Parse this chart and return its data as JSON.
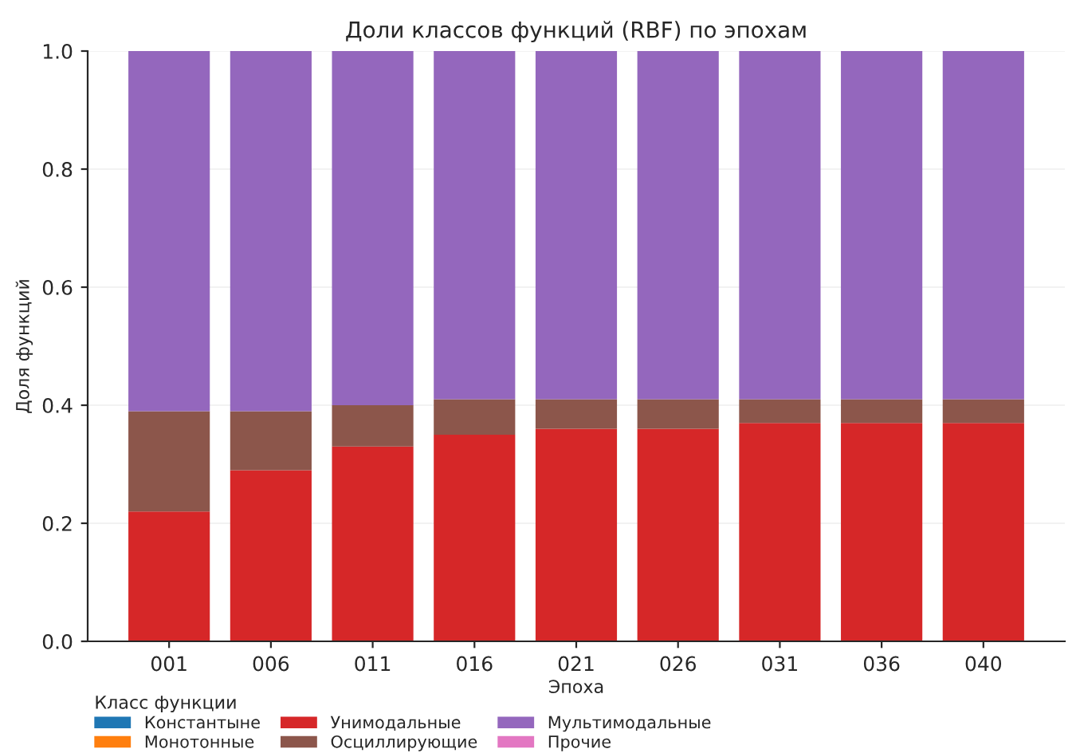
{
  "chart_data": {
    "type": "bar",
    "title": "Доли классов функций (RBF) по эпохам",
    "xlabel": "Эпоха",
    "ylabel": "Доля функций",
    "legend_title": "Класс функции",
    "categories": [
      "001",
      "006",
      "011",
      "016",
      "021",
      "026",
      "031",
      "036",
      "040"
    ],
    "stacked": true,
    "series": [
      {
        "name": "Константыне",
        "color": "#1f77b4",
        "values": [
          0,
          0,
          0,
          0,
          0,
          0,
          0,
          0,
          0
        ]
      },
      {
        "name": "Монотонные",
        "color": "#ff7f0e",
        "values": [
          0,
          0,
          0,
          0,
          0,
          0,
          0,
          0,
          0
        ]
      },
      {
        "name": "Унимодальные",
        "color": "#d62728",
        "values": [
          0.22,
          0.29,
          0.33,
          0.35,
          0.36,
          0.36,
          0.37,
          0.37,
          0.37
        ]
      },
      {
        "name": "Осциллирующие",
        "color": "#8c564b",
        "values": [
          0.17,
          0.1,
          0.07,
          0.06,
          0.05,
          0.05,
          0.04,
          0.04,
          0.04
        ]
      },
      {
        "name": "Мультимодальные",
        "color": "#9467bd",
        "values": [
          0.61,
          0.61,
          0.6,
          0.59,
          0.59,
          0.59,
          0.59,
          0.59,
          0.59
        ]
      },
      {
        "name": "Прочие",
        "color": "#e377c2",
        "values": [
          0,
          0,
          0,
          0,
          0,
          0,
          0,
          0,
          0
        ]
      }
    ],
    "ylim": [
      0,
      1.0
    ],
    "yticks": [
      {
        "value": 0,
        "label": "0.0"
      },
      {
        "value": 0.2,
        "label": "0.2"
      },
      {
        "value": 0.4,
        "label": "0.4"
      },
      {
        "value": 0.6,
        "label": "0.6"
      },
      {
        "value": 0.8,
        "label": "0.8"
      },
      {
        "value": 1.0,
        "label": "1.0"
      }
    ],
    "grid": "y",
    "legend": "bottom left"
  }
}
